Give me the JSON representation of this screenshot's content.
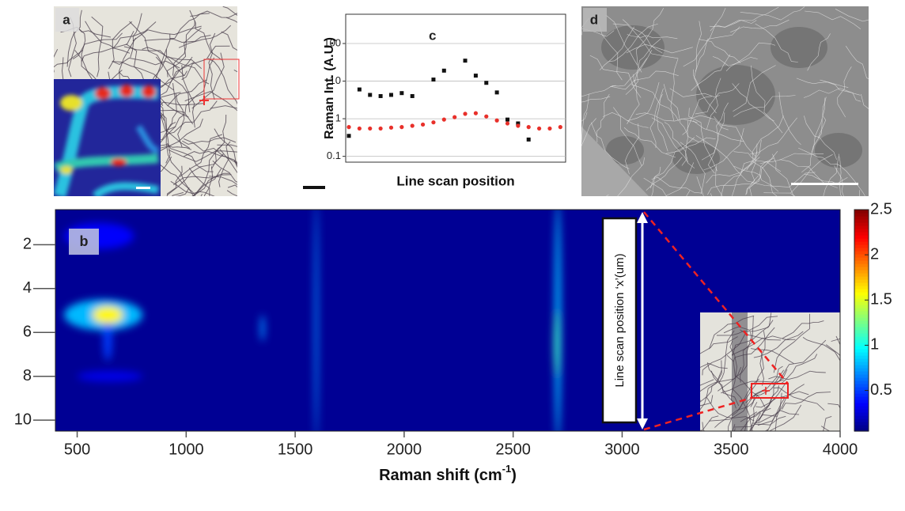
{
  "panels": [
    {
      "label": "a"
    },
    {
      "label": "d"
    }
  ],
  "chart_data": [
    {
      "type": "scatter",
      "label": "c",
      "ylabel": "Raman Int. (A.U.)",
      "xlabel": "Line scan position",
      "log_y": true,
      "grid": true,
      "xlim": [
        -0.3,
        20.5
      ],
      "ylim": [
        0.07,
        600
      ],
      "yticks": [
        0.1,
        1,
        10,
        100
      ],
      "series": [
        {
          "color": "#111111",
          "x": [
            0,
            1,
            2,
            3,
            4,
            5,
            6,
            8,
            9,
            11,
            12,
            13,
            14,
            15,
            16,
            17
          ],
          "values": [
            0.35,
            6,
            4.3,
            4,
            4.3,
            4.8,
            4,
            11,
            19,
            35,
            14,
            9,
            5,
            0.95,
            0.75,
            0.28
          ]
        },
        {
          "color": "#e8302a",
          "x": [
            0,
            1,
            2,
            3,
            4,
            5,
            6,
            7,
            8,
            9,
            10,
            11,
            12,
            13,
            14,
            15,
            16,
            17,
            18,
            19,
            20
          ],
          "values": [
            0.6,
            0.55,
            0.55,
            0.55,
            0.58,
            0.6,
            0.65,
            0.7,
            0.8,
            0.95,
            1.1,
            1.35,
            1.4,
            1.15,
            0.9,
            0.75,
            0.65,
            0.6,
            0.55,
            0.55,
            0.6
          ]
        }
      ]
    },
    {
      "type": "heatmap",
      "label": "b",
      "xlabel": [
        "Raman shift (cm",
        "-1",
        ")"
      ],
      "annotation": "Line scan position ‘x’(um)",
      "xlim": [
        400,
        4000
      ],
      "xticks": [
        500,
        1000,
        1500,
        2000,
        2500,
        3000,
        3500,
        4000
      ],
      "ylim": [
        10.5,
        0.4
      ],
      "yticks": [
        2,
        4,
        6,
        8,
        10
      ],
      "clim": [
        0.05,
        2.5
      ],
      "cticks": [
        0.5,
        1,
        1.5,
        2,
        2.5
      ],
      "background": 0.1,
      "peaks": [
        {
          "x": 600,
          "y": 1.6,
          "x_width": 160,
          "y_width": 0.6,
          "value": 0.35
        },
        {
          "x": 620,
          "y": 5.2,
          "x_width": 180,
          "y_width": 0.7,
          "value": 0.8
        },
        {
          "x": 650,
          "y": 8.0,
          "x_width": 150,
          "y_width": 0.25,
          "value": 0.3
        },
        {
          "x": 640,
          "y": 6.3,
          "x_width": 20,
          "y_width": 1.0,
          "value": 0.5
        },
        {
          "x": 640,
          "y": 5.2,
          "x_width": 70,
          "y_width": 0.4,
          "value": 1.6
        },
        {
          "x": 1350,
          "y": 5.8,
          "x_width": 10,
          "y_width": 0.6,
          "value": 0.7
        },
        {
          "x": 1597,
          "y": 5.5,
          "x_width": 8,
          "y_width": 5.5,
          "value": 0.7
        },
        {
          "x": 2705,
          "y": 5.5,
          "x_width": 14,
          "y_width": 5.5,
          "value": 0.8
        },
        {
          "x": 2700,
          "y": 6.5,
          "x_width": 12,
          "y_width": 1.5,
          "value": 1.1
        }
      ]
    }
  ]
}
